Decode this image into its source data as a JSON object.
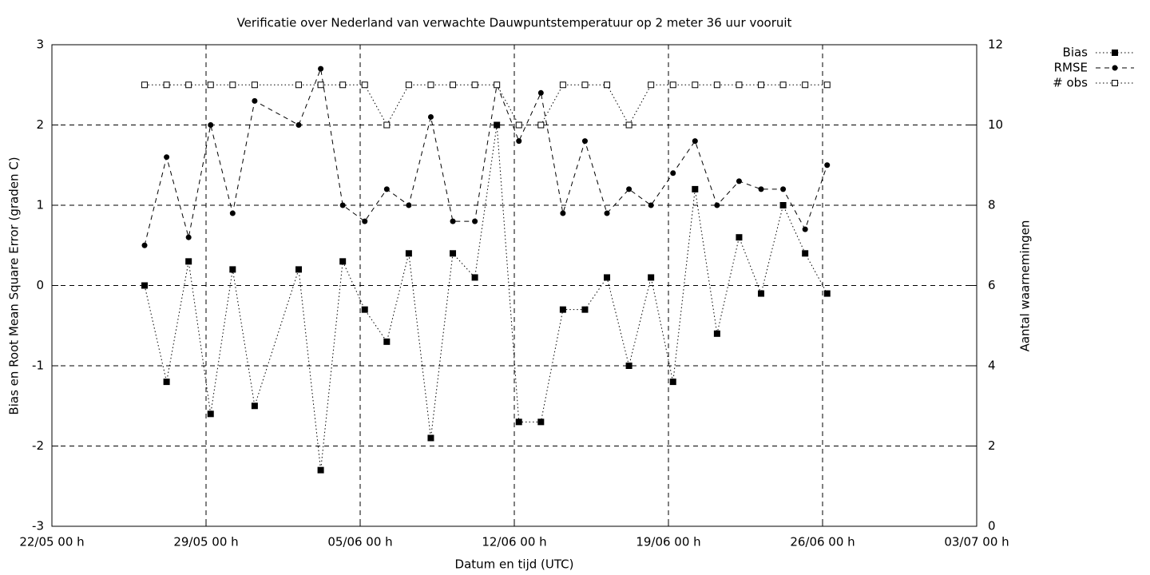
{
  "chart_data": {
    "type": "line",
    "title": "Verificatie over Nederland van verwachte Dauwpuntstemperatuur op 2 meter 36 uur vooruit",
    "xlabel": "Datum en tijd (UTC)",
    "ylabel": "Bias en Root Mean Square Error (graden C)",
    "y2label": "Aantal waarnemingen",
    "x": [
      "26/05 05 h",
      "27/05 05 h",
      "28/05 05 h",
      "29/05 05 h",
      "30/05 05 h",
      "31/05 05 h",
      "02/06 05 h",
      "03/06 05 h",
      "04/06 05 h",
      "05/06 05 h",
      "06/06 05 h",
      "07/06 05 h",
      "08/06 05 h",
      "09/06 05 h",
      "10/06 05 h",
      "11/06 05 h",
      "12/06 05 h",
      "13/06 05 h",
      "14/06 05 h",
      "15/06 05 h",
      "16/06 05 h",
      "17/06 05 h",
      "18/06 05 h",
      "19/06 05 h",
      "20/06 05 h",
      "21/06 05 h",
      "22/06 05 h",
      "23/06 05 h",
      "24/06 05 h",
      "25/06 05 h",
      "26/06 05 h"
    ],
    "series": [
      {
        "name": "Bias",
        "color": "#000000",
        "dash": "dotted",
        "marker": "filled-square",
        "axis": "y",
        "values": [
          0,
          -1.2,
          0.3,
          -1.6,
          0.2,
          -1.5,
          0.2,
          -2.3,
          0.3,
          -0.3,
          -0.7,
          0.4,
          -1.9,
          0.4,
          0.1,
          2.0,
          -1.7,
          -1.7,
          -0.3,
          -0.3,
          0.1,
          -1.0,
          0.1,
          -1.2,
          1.2,
          -0.6,
          0.6,
          -0.1,
          1.0,
          0.4,
          -0.1
        ]
      },
      {
        "name": "RMSE",
        "color": "#000000",
        "dash": "dashed",
        "marker": "filled-circle",
        "axis": "y",
        "values": [
          0.5,
          1.6,
          0.6,
          2.0,
          0.9,
          2.3,
          2.0,
          2.7,
          1.0,
          0.8,
          1.2,
          1.0,
          2.1,
          0.8,
          0.8,
          2.5,
          1.8,
          2.4,
          0.9,
          1.8,
          0.9,
          1.2,
          1.0,
          1.4,
          1.8,
          1.0,
          1.3,
          1.2,
          1.2,
          0.7,
          1.5
        ]
      },
      {
        "name": "# obs",
        "color": "#000000",
        "dash": "dotted",
        "marker": "open-square",
        "axis": "y2",
        "values": [
          11,
          11,
          11,
          11,
          11,
          11,
          11,
          11,
          11,
          11,
          10,
          11,
          11,
          11,
          11,
          11,
          10,
          10,
          11,
          11,
          11,
          10,
          11,
          11,
          11,
          11,
          11,
          11,
          11,
          11,
          11
        ]
      }
    ],
    "xlim": [
      "22/05 00 h",
      "03/07 00 h"
    ],
    "xticks": [
      "22/05 00 h",
      "29/05 00 h",
      "05/06 00 h",
      "12/06 00 h",
      "19/06 00 h",
      "26/06 00 h",
      "03/07 00 h"
    ],
    "ylim": [
      -3,
      3
    ],
    "yticks": [
      -3,
      -2,
      -1,
      0,
      1,
      2,
      3
    ],
    "y2lim": [
      0,
      12
    ],
    "y2ticks": [
      0,
      2,
      4,
      6,
      8,
      10,
      12
    ],
    "grid": true,
    "legend": "outside-top-right"
  }
}
